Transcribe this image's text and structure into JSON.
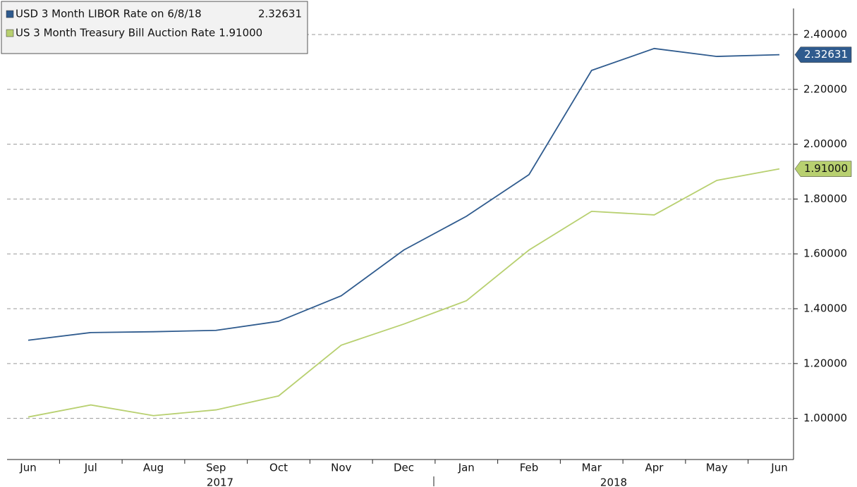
{
  "chart_data": {
    "type": "line",
    "categories": [
      "Jun",
      "Jul",
      "Aug",
      "Sep",
      "Oct",
      "Nov",
      "Dec",
      "Jan",
      "Feb",
      "Mar",
      "Apr",
      "May",
      "Jun"
    ],
    "years": [
      "2017",
      "2018"
    ],
    "series": [
      {
        "name": "USD 3 Month LIBOR Rate on 6/8/18",
        "color": "#2f5b8e",
        "values": [
          1.285,
          1.313,
          1.316,
          1.321,
          1.354,
          1.447,
          1.614,
          1.737,
          1.889,
          2.269,
          2.349,
          2.32,
          2.32631
        ],
        "last_value_label": "2.32631"
      },
      {
        "name": "US 3 Month Treasury Bill Auction Rate",
        "color": "#b8d070",
        "values": [
          1.005,
          1.049,
          1.01,
          1.031,
          1.082,
          1.267,
          1.344,
          1.429,
          1.614,
          1.755,
          1.742,
          1.868,
          1.91
        ],
        "last_value_label": "1.91000"
      }
    ],
    "ylim": [
      0.85,
      2.495
    ],
    "yticks": [
      {
        "value": 1,
        "label": "1.00000"
      },
      {
        "value": 1.2,
        "label": "1.20000"
      },
      {
        "value": 1.4,
        "label": "1.40000"
      },
      {
        "value": 1.6,
        "label": "1.60000"
      },
      {
        "value": 1.8,
        "label": "1.80000"
      },
      {
        "value": 2,
        "label": "2.00000"
      },
      {
        "value": 2.2,
        "label": "2.20000"
      },
      {
        "value": 2.4,
        "label": "2.40000"
      }
    ],
    "grid": true,
    "legend": "top-left"
  }
}
